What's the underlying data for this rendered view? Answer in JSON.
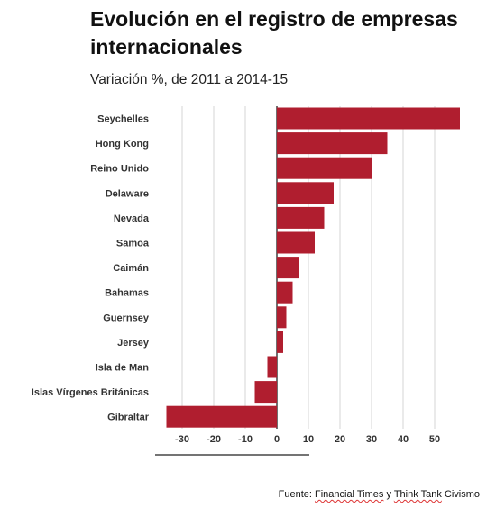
{
  "header": {
    "title": "Evolución en el registro de empresas internacionales",
    "subtitle": "Variación %, de 2011 a 2014-15"
  },
  "source": {
    "prefix": "Fuente: ",
    "org1": "Financial Times",
    "joiner": " y ",
    "org2": "Think Tank",
    "suffix": " Civismo"
  },
  "colors": {
    "bar": "#b01e2f",
    "grid": "#d5d5d5",
    "axis": "#222222"
  },
  "chart_data": {
    "type": "bar",
    "orientation": "horizontal",
    "categories": [
      "Seychelles",
      "Hong Kong",
      "Reino Unido",
      "Delaware",
      "Nevada",
      "Samoa",
      "Caimán",
      "Bahamas",
      "Guernsey",
      "Jersey",
      "Isla de Man",
      "Islas Vírgenes Británicas",
      "Gibraltar"
    ],
    "values": [
      58,
      35,
      30,
      18,
      15,
      12,
      7,
      5,
      3,
      2,
      -3,
      -7,
      -35
    ],
    "x_ticks": [
      "-30",
      "-20",
      "-10",
      "0",
      "10",
      "20",
      "30",
      "40",
      "50"
    ],
    "x_tick_values": [
      -30,
      -20,
      -10,
      0,
      10,
      20,
      30,
      40,
      50
    ],
    "xlim": [
      -35,
      58
    ],
    "title": "Evolución en el registro de empresas internacionales",
    "subtitle": "Variación %, de 2011 a 2014-15",
    "xlabel": "",
    "ylabel": "",
    "grid": true
  }
}
